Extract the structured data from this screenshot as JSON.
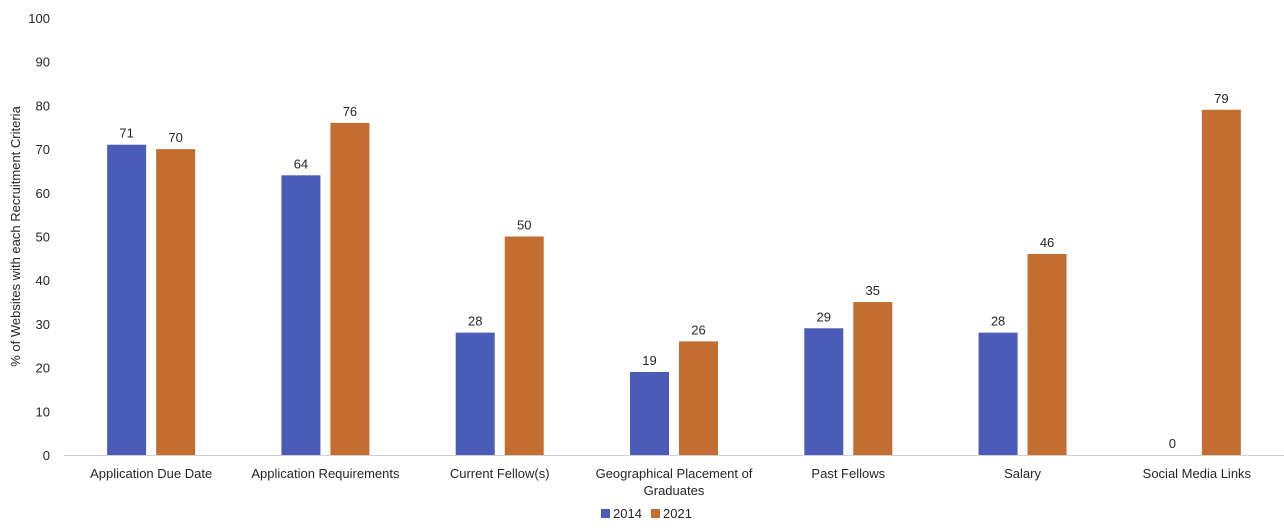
{
  "chart_data": {
    "type": "bar",
    "title": "",
    "xlabel": "",
    "ylabel": "% of Websites with each Recruitment Criteria",
    "ylim": [
      0,
      100
    ],
    "yticks": [
      0,
      10,
      20,
      30,
      40,
      50,
      60,
      70,
      80,
      90,
      100
    ],
    "grid": false,
    "legend_position": "bottom",
    "categories": [
      [
        "Application Due Date"
      ],
      [
        "Application Requirements"
      ],
      [
        "Current Fellow(s)"
      ],
      [
        "Geographical Placement of",
        "Graduates"
      ],
      [
        "Past Fellows"
      ],
      [
        "Salary"
      ],
      [
        "Social Media Links"
      ]
    ],
    "series": [
      {
        "name": "2014",
        "color": "#4a5bb8",
        "values": [
          71,
          64,
          28,
          19,
          29,
          28,
          0
        ]
      },
      {
        "name": "2021",
        "color": "#c46d30",
        "values": [
          70,
          76,
          50,
          26,
          35,
          46,
          79
        ]
      }
    ]
  }
}
